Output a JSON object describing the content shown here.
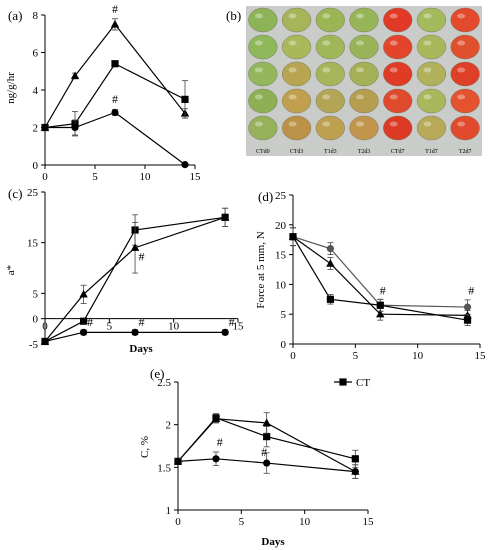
{
  "chart_data": [
    {
      "id": "a",
      "panel_label": "(a)",
      "type": "line",
      "xlabel": "",
      "ylabel": "ng/g/hr",
      "xlim": [
        0,
        15
      ],
      "ylim": [
        0,
        8
      ],
      "xticks": [
        0,
        5,
        10,
        15
      ],
      "yticks": [
        0,
        2,
        4,
        6,
        8
      ],
      "series": [
        {
          "marker": "triangle",
          "x": [
            0,
            3,
            7,
            14
          ],
          "y": [
            2.0,
            4.75,
            7.5,
            2.75
          ],
          "err": [
            0.1,
            0.15,
            0.3,
            0.25
          ]
        },
        {
          "marker": "square",
          "x": [
            0,
            3,
            7,
            14
          ],
          "y": [
            2.0,
            2.2,
            5.4,
            3.5
          ],
          "err": [
            0.1,
            0.65,
            0.15,
            1.0
          ]
        },
        {
          "marker": "circle",
          "x": [
            0,
            3,
            7,
            14
          ],
          "y": [
            2.0,
            2.0,
            2.8,
            0.02
          ],
          "err": [
            0.1,
            0.4,
            0.15,
            0.02
          ]
        }
      ],
      "annotations": [
        {
          "text": "#",
          "x": 7,
          "y": 8.1
        },
        {
          "text": "#",
          "x": 7,
          "y": 3.3
        }
      ]
    },
    {
      "id": "c",
      "panel_label": "(c)",
      "type": "line",
      "xlabel": "Days",
      "ylabel": "a*",
      "xlim": [
        0,
        15
      ],
      "ylim": [
        -5,
        25
      ],
      "xticks": [
        0,
        5,
        10,
        15
      ],
      "yticks": [
        -5,
        0,
        5,
        15,
        25
      ],
      "series": [
        {
          "marker": "square",
          "x": [
            0,
            3,
            7,
            14
          ],
          "y": [
            -4.5,
            -0.5,
            17.5,
            20.0
          ],
          "err": [
            0.3,
            0.5,
            3.0,
            1.8
          ]
        },
        {
          "marker": "triangle",
          "x": [
            0,
            3,
            7,
            14
          ],
          "y": [
            -4.5,
            4.8,
            14.0,
            20.0
          ],
          "err": [
            0.3,
            1.8,
            5.0,
            1.8
          ]
        },
        {
          "marker": "circle",
          "x": [
            0,
            3,
            7,
            14
          ],
          "y": [
            -4.5,
            -2.7,
            -2.7,
            -2.7
          ],
          "err": [
            0.3,
            0.5,
            0.5,
            0.5
          ]
        }
      ],
      "annotations": [
        {
          "text": "#",
          "x": 3.5,
          "y": -1.4
        },
        {
          "text": "#",
          "x": 7.5,
          "y": 11.5
        },
        {
          "text": "#",
          "x": 7.5,
          "y": -1.4
        },
        {
          "text": "#",
          "x": 14.5,
          "y": -1.4
        }
      ]
    },
    {
      "id": "d",
      "panel_label": "(d)",
      "type": "line",
      "xlabel": "",
      "ylabel": "Force at 5 mm, N",
      "xlim": [
        0,
        15
      ],
      "ylim": [
        0,
        25
      ],
      "xticks": [
        0,
        5,
        10,
        15
      ],
      "yticks": [
        0,
        5,
        10,
        15,
        20,
        25
      ],
      "series": [
        {
          "marker": "circle",
          "color": "#555555",
          "x": [
            0,
            3,
            7,
            14
          ],
          "y": [
            18.0,
            16.0,
            6.5,
            6.2
          ],
          "err": [
            1.5,
            1.0,
            1.0,
            1.2
          ]
        },
        {
          "marker": "triangle",
          "color": "#000000",
          "x": [
            0,
            3,
            7,
            14
          ],
          "y": [
            18.0,
            13.5,
            5.0,
            4.8
          ],
          "err": [
            1.5,
            1.0,
            1.0,
            0.8
          ]
        },
        {
          "marker": "square",
          "color": "#000000",
          "x": [
            0,
            3,
            7,
            14
          ],
          "y": [
            18.0,
            7.5,
            6.5,
            4.0
          ],
          "err": [
            1.5,
            0.8,
            1.0,
            0.9
          ]
        }
      ],
      "annotations": [
        {
          "text": "#",
          "x": 7.2,
          "y": 8.3
        },
        {
          "text": "#",
          "x": 14.3,
          "y": 8.3
        }
      ]
    },
    {
      "id": "e",
      "panel_label": "(e)",
      "type": "line",
      "xlabel": "Days",
      "ylabel": "C, %",
      "xlim": [
        0,
        15
      ],
      "ylim": [
        1,
        2.5
      ],
      "xticks": [
        0,
        5,
        10,
        15
      ],
      "yticks": [
        1,
        1.5,
        2,
        2.5
      ],
      "legend": {
        "position": "top-right",
        "entries": [
          {
            "name": "CT",
            "marker": "square"
          }
        ]
      },
      "series": [
        {
          "name": "CT",
          "marker": "square",
          "x": [
            0,
            3,
            7,
            14
          ],
          "y": [
            1.57,
            2.08,
            1.86,
            1.6
          ],
          "err": [
            0.03,
            0.05,
            0.12,
            0.1
          ]
        },
        {
          "marker": "triangle",
          "x": [
            0,
            3,
            7,
            14
          ],
          "y": [
            1.57,
            2.07,
            2.02,
            1.45
          ],
          "err": [
            0.03,
            0.05,
            0.12,
            0.08
          ]
        },
        {
          "marker": "circle",
          "x": [
            0,
            3,
            7,
            14
          ],
          "y": [
            1.57,
            1.6,
            1.55,
            1.45
          ],
          "err": [
            0.03,
            0.08,
            0.12,
            0.08
          ]
        }
      ],
      "annotations": [
        {
          "text": "#",
          "x": 3.3,
          "y": 1.75
        },
        {
          "text": "#",
          "x": 6.8,
          "y": 1.63
        }
      ]
    }
  ],
  "photo": {
    "panel_label": "(b)",
    "captions": [
      "CTd0",
      "CTd3",
      "T1d3",
      "T2d3",
      "CTd7",
      "T1d7",
      "T2d7"
    ],
    "columns": [
      [
        "#8cb356",
        "#8fb85a",
        "#93b75a",
        "#8db055",
        "#95b25a"
      ],
      [
        "#a7b45a",
        "#a9b858",
        "#b7a552",
        "#c0a04e",
        "#bb9248"
      ],
      [
        "#9bb555",
        "#9fb759",
        "#a6b55a",
        "#b3a556",
        "#bda150"
      ],
      [
        "#96b556",
        "#99b458",
        "#a5b157",
        "#b69d4f",
        "#c1964c"
      ],
      [
        "#e03a26",
        "#e2452b",
        "#df3b25",
        "#e04a2c",
        "#dc3a24"
      ],
      [
        "#a3bb5c",
        "#a9b75b",
        "#b1b15b",
        "#aab85d",
        "#b7a957"
      ],
      [
        "#e24a2b",
        "#e1502e",
        "#de4027",
        "#e45230",
        "#e14a2c"
      ]
    ]
  }
}
